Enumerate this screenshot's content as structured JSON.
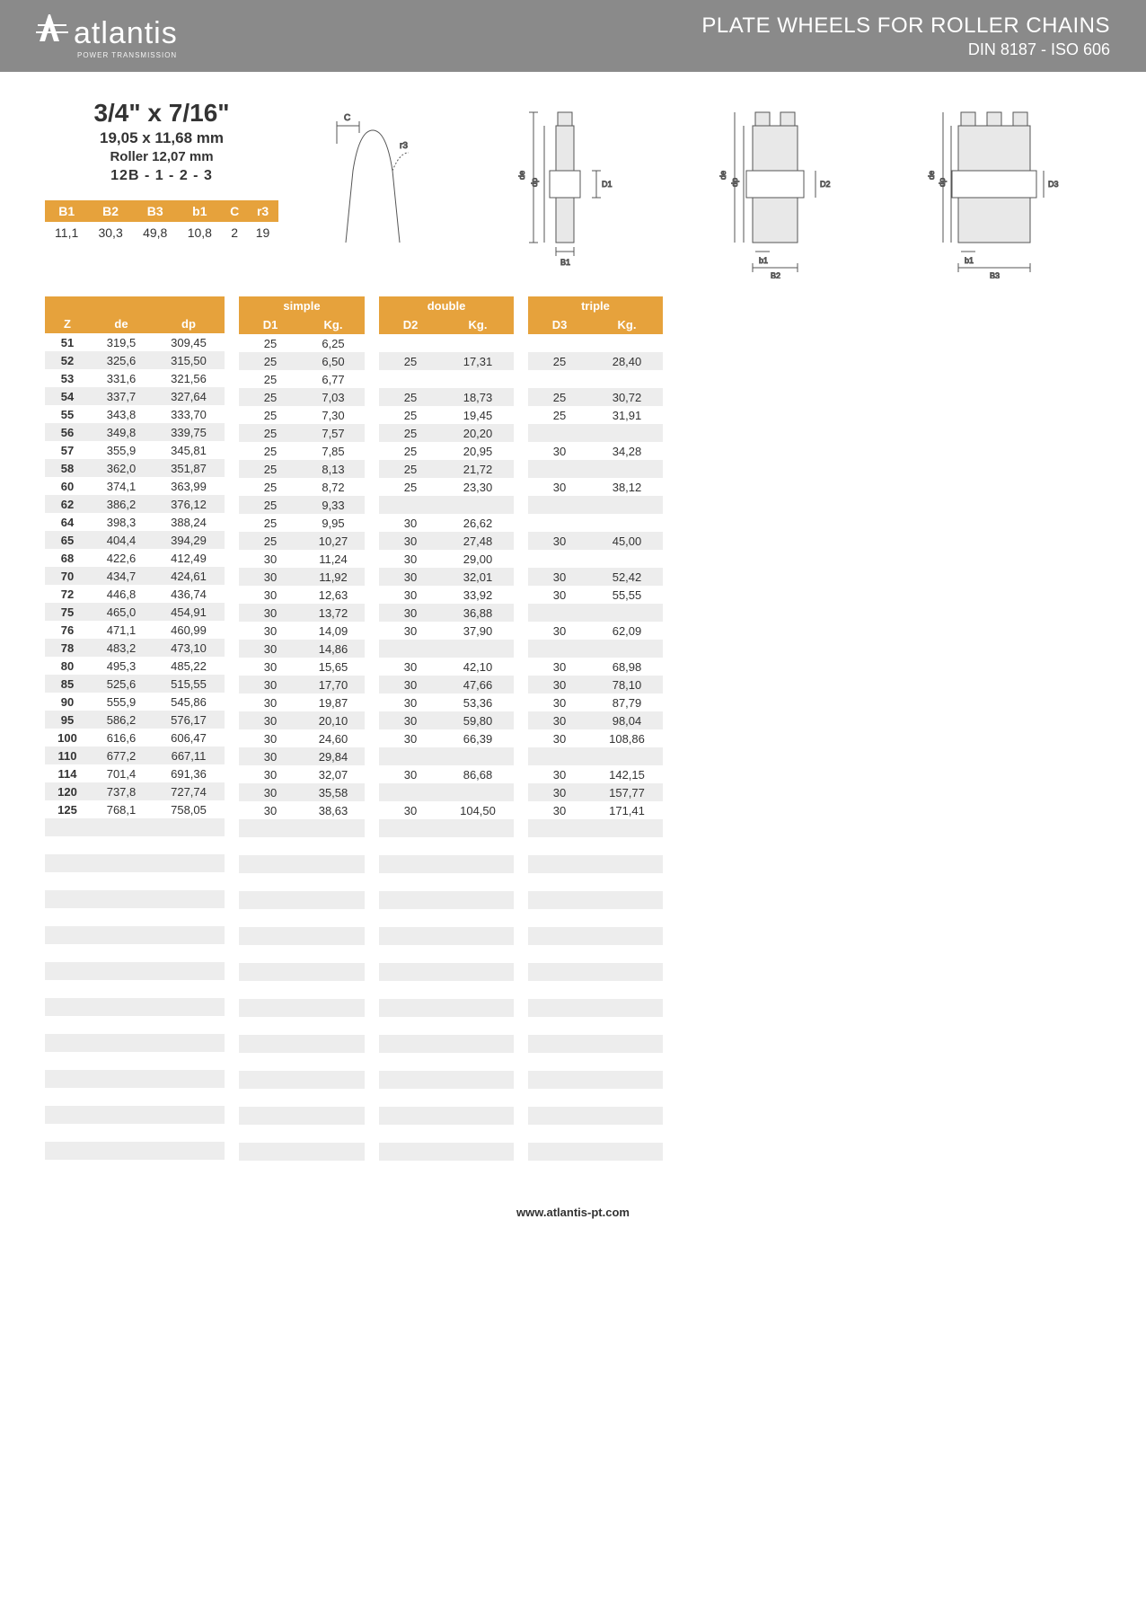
{
  "header": {
    "logo_text": "atlantis",
    "logo_sub": "POWER TRANSMISSION",
    "title": "PLATE WHEELS FOR ROLLER CHAINS",
    "subtitle": "DIN 8187 - ISO 606"
  },
  "spec": {
    "size": "3/4\" x 7/16\"",
    "mm": "19,05 x 11,68 mm",
    "roller": "Roller 12,07 mm",
    "code": "12B - 1 - 2 - 3"
  },
  "dims": {
    "headers": [
      "B1",
      "B2",
      "B3",
      "b1",
      "C",
      "r3"
    ],
    "values": [
      "11,1",
      "30,3",
      "49,8",
      "10,8",
      "2",
      "19"
    ]
  },
  "columns": {
    "left": [
      "Z",
      "de",
      "dp"
    ],
    "simple_label": "simple",
    "simple": [
      "D1",
      "Kg."
    ],
    "double_label": "double",
    "double": [
      "D2",
      "Kg."
    ],
    "triple_label": "triple",
    "triple": [
      "D3",
      "Kg."
    ]
  },
  "rows": [
    {
      "z": "51",
      "de": "319,5",
      "dp": "309,45",
      "d1": "25",
      "kg1": "6,25",
      "d2": "",
      "kg2": "",
      "d3": "",
      "kg3": ""
    },
    {
      "z": "52",
      "de": "325,6",
      "dp": "315,50",
      "d1": "25",
      "kg1": "6,50",
      "d2": "25",
      "kg2": "17,31",
      "d3": "25",
      "kg3": "28,40"
    },
    {
      "z": "53",
      "de": "331,6",
      "dp": "321,56",
      "d1": "25",
      "kg1": "6,77",
      "d2": "",
      "kg2": "",
      "d3": "",
      "kg3": ""
    },
    {
      "z": "54",
      "de": "337,7",
      "dp": "327,64",
      "d1": "25",
      "kg1": "7,03",
      "d2": "25",
      "kg2": "18,73",
      "d3": "25",
      "kg3": "30,72"
    },
    {
      "z": "55",
      "de": "343,8",
      "dp": "333,70",
      "d1": "25",
      "kg1": "7,30",
      "d2": "25",
      "kg2": "19,45",
      "d3": "25",
      "kg3": "31,91"
    },
    {
      "z": "56",
      "de": "349,8",
      "dp": "339,75",
      "d1": "25",
      "kg1": "7,57",
      "d2": "25",
      "kg2": "20,20",
      "d3": "",
      "kg3": ""
    },
    {
      "z": "57",
      "de": "355,9",
      "dp": "345,81",
      "d1": "25",
      "kg1": "7,85",
      "d2": "25",
      "kg2": "20,95",
      "d3": "30",
      "kg3": "34,28"
    },
    {
      "z": "58",
      "de": "362,0",
      "dp": "351,87",
      "d1": "25",
      "kg1": "8,13",
      "d2": "25",
      "kg2": "21,72",
      "d3": "",
      "kg3": ""
    },
    {
      "z": "60",
      "de": "374,1",
      "dp": "363,99",
      "d1": "25",
      "kg1": "8,72",
      "d2": "25",
      "kg2": "23,30",
      "d3": "30",
      "kg3": "38,12"
    },
    {
      "z": "62",
      "de": "386,2",
      "dp": "376,12",
      "d1": "25",
      "kg1": "9,33",
      "d2": "",
      "kg2": "",
      "d3": "",
      "kg3": ""
    },
    {
      "z": "64",
      "de": "398,3",
      "dp": "388,24",
      "d1": "25",
      "kg1": "9,95",
      "d2": "30",
      "kg2": "26,62",
      "d3": "",
      "kg3": ""
    },
    {
      "z": "65",
      "de": "404,4",
      "dp": "394,29",
      "d1": "25",
      "kg1": "10,27",
      "d2": "30",
      "kg2": "27,48",
      "d3": "30",
      "kg3": "45,00"
    },
    {
      "z": "68",
      "de": "422,6",
      "dp": "412,49",
      "d1": "30",
      "kg1": "11,24",
      "d2": "30",
      "kg2": "29,00",
      "d3": "",
      "kg3": ""
    },
    {
      "z": "70",
      "de": "434,7",
      "dp": "424,61",
      "d1": "30",
      "kg1": "11,92",
      "d2": "30",
      "kg2": "32,01",
      "d3": "30",
      "kg3": "52,42"
    },
    {
      "z": "72",
      "de": "446,8",
      "dp": "436,74",
      "d1": "30",
      "kg1": "12,63",
      "d2": "30",
      "kg2": "33,92",
      "d3": "30",
      "kg3": "55,55"
    },
    {
      "z": "75",
      "de": "465,0",
      "dp": "454,91",
      "d1": "30",
      "kg1": "13,72",
      "d2": "30",
      "kg2": "36,88",
      "d3": "",
      "kg3": ""
    },
    {
      "z": "76",
      "de": "471,1",
      "dp": "460,99",
      "d1": "30",
      "kg1": "14,09",
      "d2": "30",
      "kg2": "37,90",
      "d3": "30",
      "kg3": "62,09"
    },
    {
      "z": "78",
      "de": "483,2",
      "dp": "473,10",
      "d1": "30",
      "kg1": "14,86",
      "d2": "",
      "kg2": "",
      "d3": "",
      "kg3": ""
    },
    {
      "z": "80",
      "de": "495,3",
      "dp": "485,22",
      "d1": "30",
      "kg1": "15,65",
      "d2": "30",
      "kg2": "42,10",
      "d3": "30",
      "kg3": "68,98"
    },
    {
      "z": "85",
      "de": "525,6",
      "dp": "515,55",
      "d1": "30",
      "kg1": "17,70",
      "d2": "30",
      "kg2": "47,66",
      "d3": "30",
      "kg3": "78,10"
    },
    {
      "z": "90",
      "de": "555,9",
      "dp": "545,86",
      "d1": "30",
      "kg1": "19,87",
      "d2": "30",
      "kg2": "53,36",
      "d3": "30",
      "kg3": "87,79"
    },
    {
      "z": "95",
      "de": "586,2",
      "dp": "576,17",
      "d1": "30",
      "kg1": "20,10",
      "d2": "30",
      "kg2": "59,80",
      "d3": "30",
      "kg3": "98,04"
    },
    {
      "z": "100",
      "de": "616,6",
      "dp": "606,47",
      "d1": "30",
      "kg1": "24,60",
      "d2": "30",
      "kg2": "66,39",
      "d3": "30",
      "kg3": "108,86"
    },
    {
      "z": "110",
      "de": "677,2",
      "dp": "667,11",
      "d1": "30",
      "kg1": "29,84",
      "d2": "",
      "kg2": "",
      "d3": "",
      "kg3": ""
    },
    {
      "z": "114",
      "de": "701,4",
      "dp": "691,36",
      "d1": "30",
      "kg1": "32,07",
      "d2": "30",
      "kg2": "86,68",
      "d3": "30",
      "kg3": "142,15"
    },
    {
      "z": "120",
      "de": "737,8",
      "dp": "727,74",
      "d1": "30",
      "kg1": "35,58",
      "d2": "",
      "kg2": "",
      "d3": "30",
      "kg3": "157,77"
    },
    {
      "z": "125",
      "de": "768,1",
      "dp": "758,05",
      "d1": "30",
      "kg1": "38,63",
      "d2": "30",
      "kg2": "104,50",
      "d3": "30",
      "kg3": "171,41"
    }
  ],
  "empty_rows": 20,
  "footer": {
    "url": "www.atlantis-pt.com"
  },
  "colors": {
    "header_bg": "#8a8a8a",
    "accent": "#e6a23c",
    "row_alt": "#ededed"
  }
}
